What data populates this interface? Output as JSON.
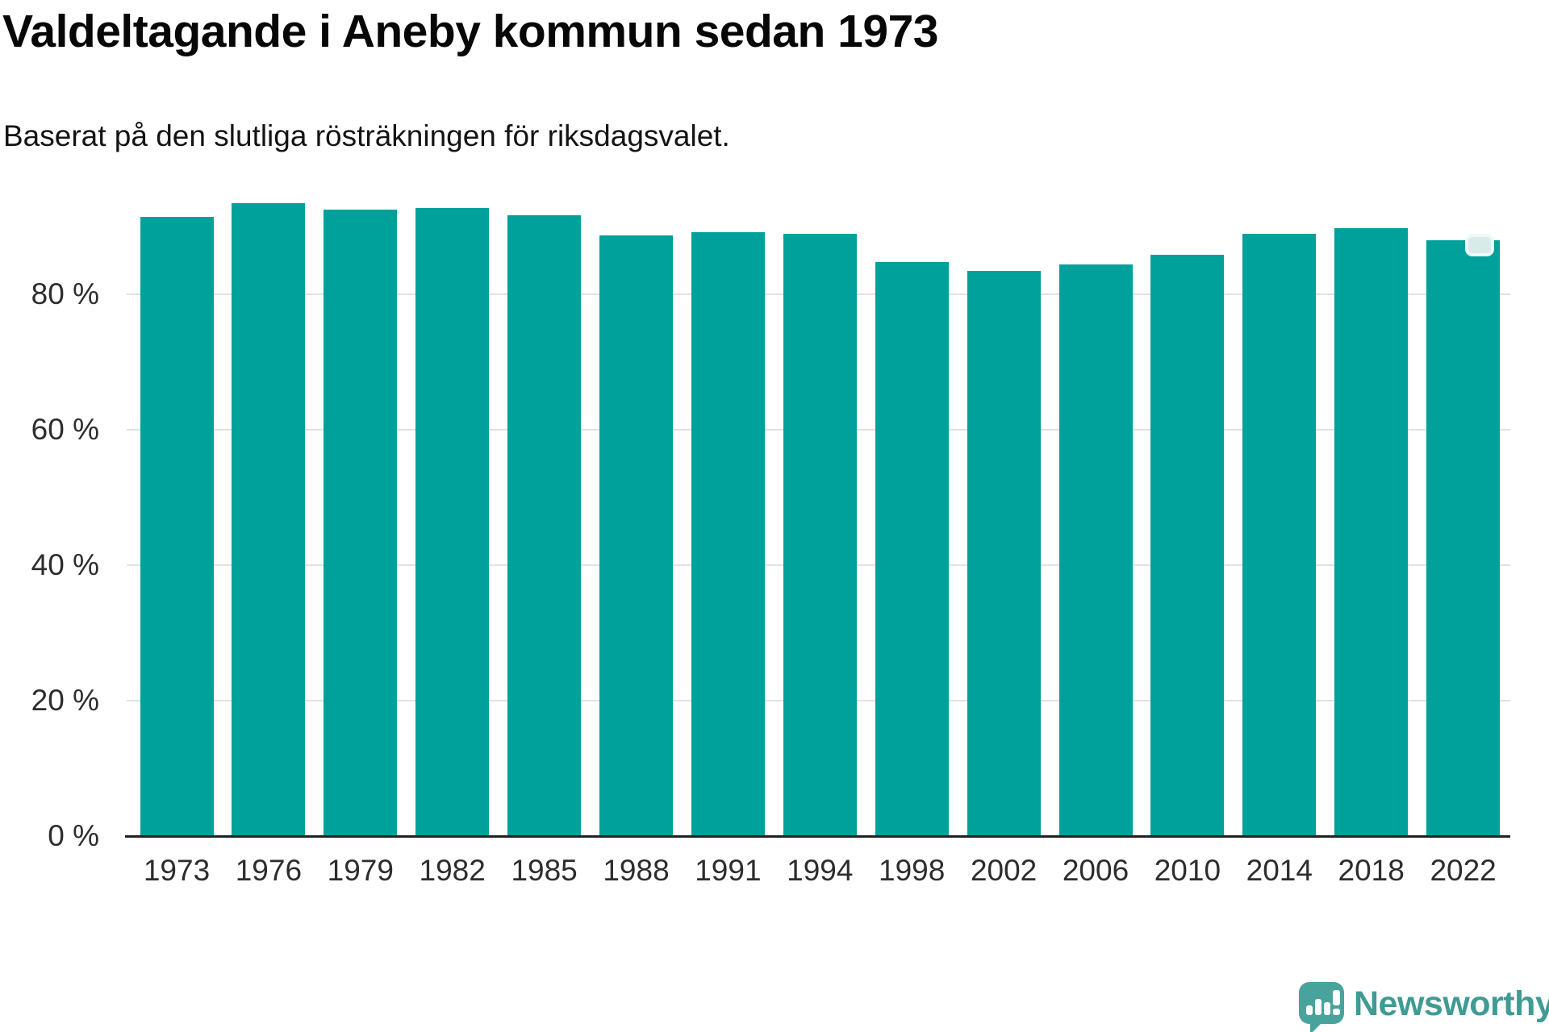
{
  "header": {
    "title": "Valdeltagande i Aneby kommun sedan 1973",
    "subtitle": "Baserat på den slutliga rösträkningen för riksdagsvalet."
  },
  "chart_data": {
    "type": "bar",
    "title": "Valdeltagande i Aneby kommun sedan 1973",
    "subtitle": "Baserat på den slutliga rösträkningen för riksdagsvalet.",
    "categories": [
      "1973",
      "1976",
      "1979",
      "1982",
      "1985",
      "1988",
      "1991",
      "1994",
      "1998",
      "2002",
      "2006",
      "2010",
      "2014",
      "2018",
      "2022"
    ],
    "values": [
      91.4,
      93.5,
      92.5,
      92.7,
      91.7,
      88.7,
      89.2,
      88.9,
      84.8,
      83.5,
      84.4,
      85.8,
      88.9,
      89.8,
      88.0
    ],
    "unit": "%",
    "xlabel": "",
    "ylabel": "",
    "ylim": [
      0,
      100
    ],
    "yticks": [
      {
        "value": 0,
        "label": "0 %"
      },
      {
        "value": 20,
        "label": "20 %"
      },
      {
        "value": 40,
        "label": "40 %"
      },
      {
        "value": 60,
        "label": "60 %"
      },
      {
        "value": 80,
        "label": "80 %"
      }
    ],
    "grid": "horizontal",
    "legend": "none",
    "bar_color": "#00a19a",
    "highlight_artifact": {
      "on_category": "2022",
      "shape": "rounded-notch"
    }
  },
  "footer": {
    "brand_name": "Newsworthy",
    "logo_icon": "newsworthy-speech-bubble-barchart-icon",
    "brand_color": "#3f9b94"
  },
  "colors": {
    "bar": "#00a19a",
    "axis_line": "#222222",
    "gridline": "#e1e1e1",
    "tick_text": "#2d2d2d",
    "title_text": "#070707",
    "logo_bg": "#48a39c"
  }
}
